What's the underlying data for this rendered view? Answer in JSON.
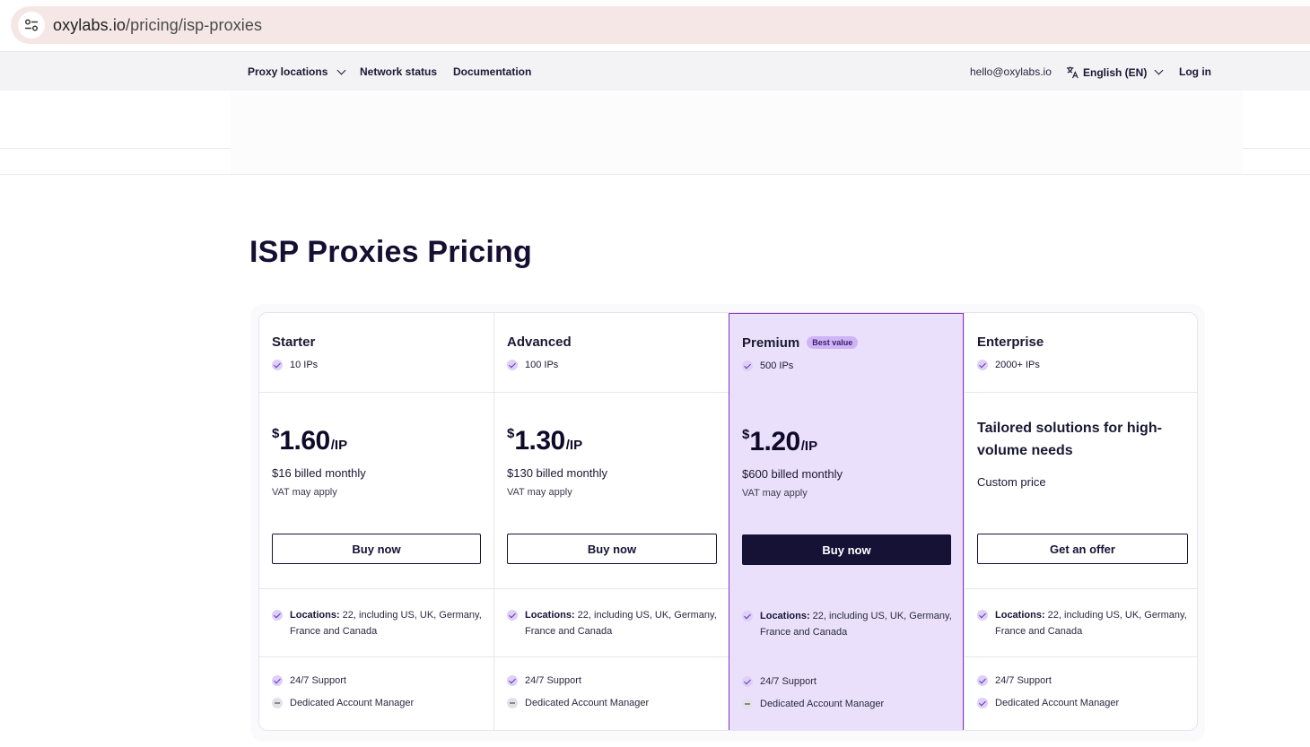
{
  "browser": {
    "url_domain": "oxylabs.io",
    "url_path": "/pricing/isp-proxies"
  },
  "nav": {
    "proxy_locations": "Proxy locations",
    "network_status": "Network status",
    "documentation": "Documentation",
    "email": "hello@oxylabs.io",
    "language": "English (EN)",
    "login": "Log in"
  },
  "page": {
    "title": "ISP Proxies Pricing"
  },
  "plans": [
    {
      "name": "Starter",
      "ips": "10 IPs",
      "currency": "$",
      "price": "1.60",
      "unit": "/IP",
      "billed": "$16 billed monthly",
      "vat": "VAT may apply",
      "button": "Buy now",
      "locations_label": "Locations:",
      "locations": " 22, including US, UK, Germany, France and Canada",
      "support": "24/7 Support",
      "manager": "Dedicated Account Manager"
    },
    {
      "name": "Advanced",
      "ips": "100 IPs",
      "currency": "$",
      "price": "1.30",
      "unit": "/IP",
      "billed": "$130 billed monthly",
      "vat": "VAT may apply",
      "button": "Buy now",
      "locations_label": "Locations:",
      "locations": " 22, including US, UK, Germany, France and Canada",
      "support": "24/7 Support",
      "manager": "Dedicated Account Manager"
    },
    {
      "name": "Premium",
      "badge": "Best value",
      "ips": "500 IPs",
      "currency": "$",
      "price": "1.20",
      "unit": "/IP",
      "billed": "$600 billed monthly",
      "vat": "VAT may apply",
      "button": "Buy now",
      "locations_label": "Locations:",
      "locations": " 22, including US, UK, Germany, France and Canada",
      "support": "24/7 Support",
      "manager": "Dedicated Account Manager"
    },
    {
      "name": "Enterprise",
      "ips": "2000+ IPs",
      "headline": "Tailored solutions for high-volume needs",
      "custom_price": "Custom price",
      "button": "Get an offer",
      "locations_label": "Locations:",
      "locations": " 22, including US, UK, Germany, France and Canada",
      "support": "24/7 Support",
      "manager": "Dedicated Account Manager"
    }
  ],
  "colors": {
    "accent_purple": "#8b2fc9",
    "premium_bg": "#ebe0fb",
    "dark_button": "#161236"
  },
  "icons": [
    "site-settings-icon",
    "chevron-down-icon",
    "translate-icon",
    "check-circle-icon",
    "dash-circle-icon"
  ]
}
